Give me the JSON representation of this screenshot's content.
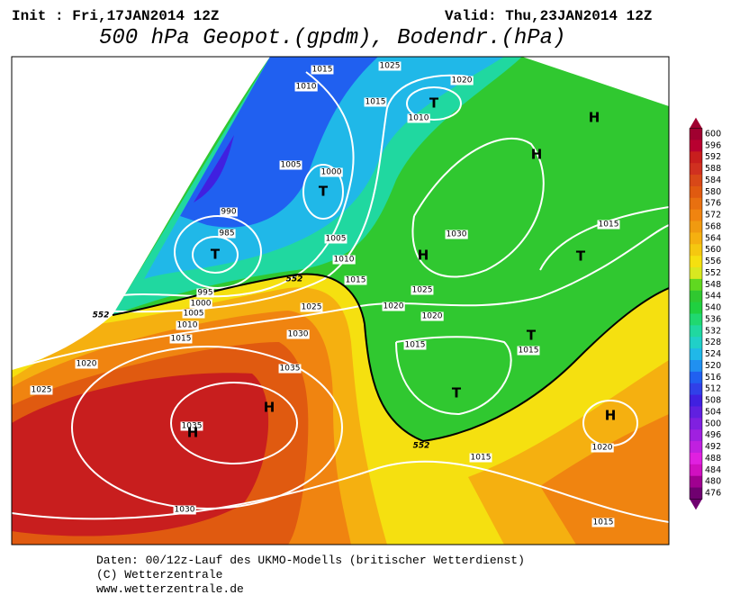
{
  "header": {
    "init": "Init : Fri,17JAN2014 12Z",
    "valid": "Valid: Thu,23JAN2014 12Z",
    "title": "500 hPa Geopot.(gpdm), Bodendr.(hPa)"
  },
  "map": {
    "isobar_labels": [
      "1015",
      "1025",
      "1020",
      "1010",
      "1015",
      "1010",
      "1005",
      "1000",
      "990",
      "985",
      "1005",
      "1010",
      "1030",
      "1015",
      "1015",
      "1020",
      "1025",
      "1020",
      "995",
      "1000",
      "1005",
      "1010",
      "1015",
      "1025",
      "1030",
      "1035",
      "1020",
      "1025",
      "1015",
      "1015",
      "1035",
      "1030",
      "1020",
      "1015",
      "1015"
    ],
    "geopot_labels": [
      "552",
      "552",
      "552"
    ],
    "centers": [
      "H",
      "H",
      "H",
      "H",
      "H",
      "H",
      "T",
      "T",
      "T",
      "T",
      "T",
      "T"
    ]
  },
  "colorbar": {
    "labels": [
      600,
      596,
      592,
      588,
      584,
      580,
      576,
      572,
      568,
      564,
      560,
      556,
      552,
      548,
      544,
      540,
      536,
      532,
      528,
      524,
      520,
      516,
      512,
      508,
      504,
      500,
      496,
      492,
      488,
      484,
      480,
      476
    ],
    "colors": [
      "#a00030",
      "#b80030",
      "#c81e1e",
      "#d03020",
      "#d84818",
      "#e05a10",
      "#e87010",
      "#f08410",
      "#f09a10",
      "#f5b010",
      "#f5c810",
      "#f5e010",
      "#d8e820",
      "#60d820",
      "#30c830",
      "#20d040",
      "#20d870",
      "#20d8a0",
      "#20d0c8",
      "#20b8e8",
      "#2090f0",
      "#2060f0",
      "#3040e8",
      "#4020e0",
      "#6020e0",
      "#8020e0",
      "#a020e0",
      "#c020e0",
      "#e020e0",
      "#d010c0",
      "#a00090",
      "#700070"
    ]
  },
  "footer": {
    "lines": [
      "Daten: 00/12z-Lauf des UKMO-Modells (britischer Wetterdienst)",
      "(C) Wetterzentrale",
      "www.wetterzentrale.de"
    ]
  }
}
